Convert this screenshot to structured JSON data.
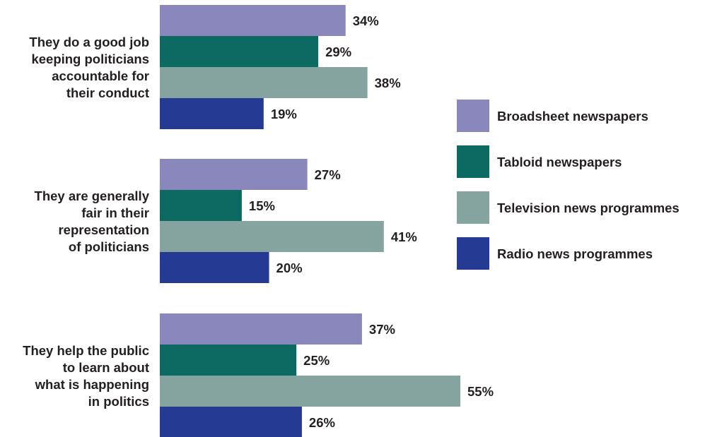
{
  "chart_data": {
    "type": "bar",
    "orientation": "horizontal",
    "value_suffix": "%",
    "categories": [
      [
        "They do a good job",
        "keeping politicians",
        "accountable for",
        "their conduct"
      ],
      [
        "They are generally",
        "fair in their",
        "representation",
        "of politicians"
      ],
      [
        "They help the public",
        "to learn about",
        "what is happening",
        "in politics"
      ]
    ],
    "series": [
      {
        "name": "Broadsheet newspapers",
        "color": "#8a87bd",
        "values": [
          34,
          27,
          37
        ]
      },
      {
        "name": "Tabloid newspapers",
        "color": "#0d6a62",
        "values": [
          29,
          15,
          25
        ]
      },
      {
        "name": "Television news programmes",
        "color": "#85a4a0",
        "values": [
          38,
          41,
          55
        ]
      },
      {
        "name": "Radio news programmes",
        "color": "#253a93",
        "values": [
          19,
          20,
          26
        ]
      }
    ],
    "xlim": [
      0,
      55
    ],
    "legend_position": "right",
    "grid": false
  }
}
